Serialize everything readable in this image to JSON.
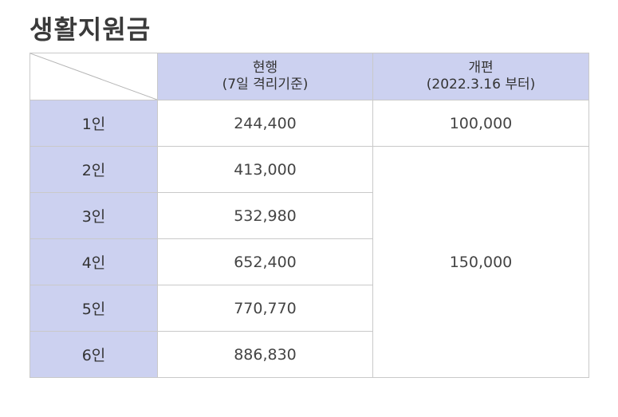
{
  "title": "생활지원금",
  "columns": {
    "current": {
      "line1": "현행",
      "line2": "(7일 격리기준)"
    },
    "revised": {
      "line1": "개편",
      "line2": "(2022.3.16 부터)"
    }
  },
  "rows": [
    {
      "label": "1인",
      "current": "244,400"
    },
    {
      "label": "2인",
      "current": "413,000"
    },
    {
      "label": "3인",
      "current": "532,980"
    },
    {
      "label": "4인",
      "current": "652,400"
    },
    {
      "label": "5인",
      "current": "770,770"
    },
    {
      "label": "6인",
      "current": "886,830"
    }
  ],
  "revised_values": {
    "single": "100,000",
    "multi": "150,000"
  },
  "colors": {
    "header_bg": "#ccd1f0",
    "border": "#c9c9c9"
  }
}
